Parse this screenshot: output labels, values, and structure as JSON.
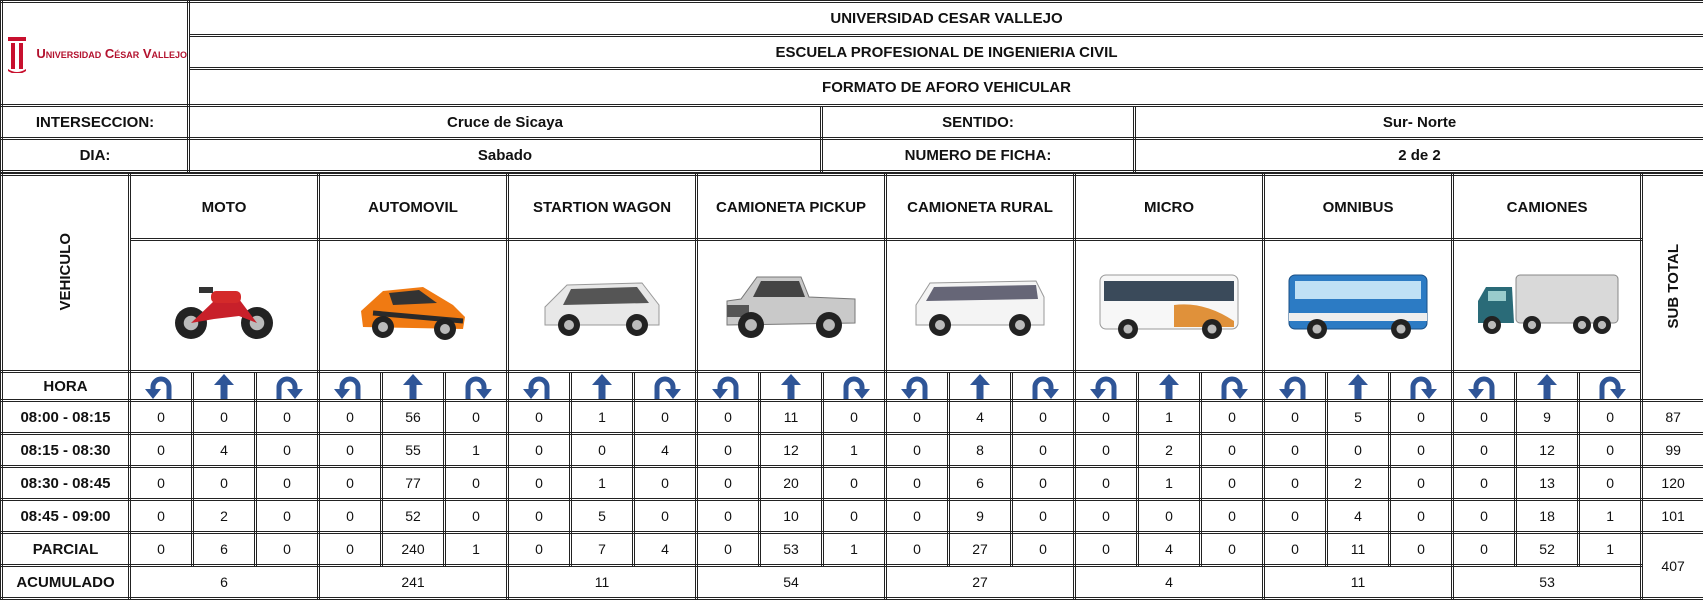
{
  "header": {
    "logo_text": "Universidad César Vallejo",
    "titles": [
      "UNIVERSIDAD CESAR VALLEJO",
      "ESCUELA PROFESIONAL DE INGENIERIA CIVIL",
      "FORMATO DE AFORO VEHICULAR"
    ]
  },
  "info": {
    "interseccion_label": "INTERSECCION:",
    "interseccion": "Cruce de Sicaya",
    "sentido_label": "SENTIDO:",
    "sentido": "Sur- Norte",
    "dia_label": "DIA:",
    "dia": "Sabado",
    "ficha_label": "NUMERO DE FICHA:",
    "ficha": "2 de 2"
  },
  "table": {
    "vehicle_label": "VEHICULO",
    "subtotal_label": "SUB TOTAL",
    "hora_label": "HORA",
    "vehicles": [
      "MOTO",
      "AUTOMOVIL",
      "STARTION WAGON",
      "CAMIONETA PICKUP",
      "CAMIONETA RURAL",
      "MICRO",
      "OMNIBUS",
      "CAMIONES"
    ],
    "rows": [
      {
        "hora": "08:00 - 08:15",
        "counts": [
          0,
          0,
          0,
          0,
          56,
          0,
          0,
          1,
          0,
          0,
          11,
          0,
          0,
          4,
          0,
          0,
          1,
          0,
          0,
          5,
          0,
          0,
          9,
          0
        ],
        "subtotal": 87
      },
      {
        "hora": "08:15 - 08:30",
        "counts": [
          0,
          4,
          0,
          0,
          55,
          1,
          0,
          0,
          4,
          0,
          12,
          1,
          0,
          8,
          0,
          0,
          2,
          0,
          0,
          0,
          0,
          0,
          12,
          0
        ],
        "subtotal": 99
      },
      {
        "hora": "08:30 - 08:45",
        "counts": [
          0,
          0,
          0,
          0,
          77,
          0,
          0,
          1,
          0,
          0,
          20,
          0,
          0,
          6,
          0,
          0,
          1,
          0,
          0,
          2,
          0,
          0,
          13,
          0
        ],
        "subtotal": 120
      },
      {
        "hora": "08:45 - 09:00",
        "counts": [
          0,
          2,
          0,
          0,
          52,
          0,
          0,
          5,
          0,
          0,
          10,
          0,
          0,
          9,
          0,
          0,
          0,
          0,
          0,
          4,
          0,
          0,
          18,
          1
        ],
        "subtotal": 101
      }
    ],
    "parcial": {
      "label": "PARCIAL",
      "counts": [
        0,
        6,
        0,
        0,
        240,
        1,
        0,
        7,
        4,
        0,
        53,
        1,
        0,
        27,
        0,
        0,
        4,
        0,
        0,
        11,
        0,
        0,
        52,
        1
      ]
    },
    "acumulado": {
      "label": "ACUMULADO",
      "values": [
        6,
        241,
        11,
        54,
        27,
        4,
        11,
        53
      ]
    },
    "total": 407
  }
}
